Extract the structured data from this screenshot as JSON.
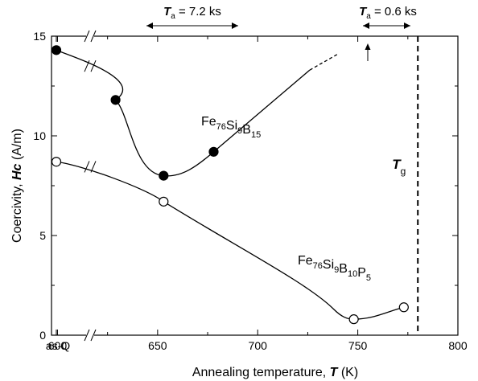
{
  "chart_data": {
    "type": "scatter",
    "xlabel": {
      "prefix": "Annealing temperature, ",
      "var": "T",
      "suffix": " (K)"
    },
    "ylabel": {
      "prefix": "Coercivity, ",
      "var": "Hc",
      "suffix": " (A/m)"
    },
    "xlim": [
      597,
      800
    ],
    "ylim": [
      0,
      15
    ],
    "x_ticks": [
      {
        "label": "as-Q",
        "x": "as-Q"
      },
      {
        "label": "600",
        "x": 600
      },
      {
        "label": "650",
        "x": 650
      },
      {
        "label": "700",
        "x": 700
      },
      {
        "label": "750",
        "x": 750
      },
      {
        "label": "800",
        "x": 800
      }
    ],
    "y_ticks": [
      0,
      5,
      10,
      15
    ],
    "axis_break": "between as-Q and 600",
    "grid": false,
    "series": [
      {
        "name": "Fe76Si9B15",
        "label_parts": [
          [
            "Fe",
            "76"
          ],
          [
            "Si",
            "9"
          ],
          [
            "B",
            "15"
          ]
        ],
        "marker": "filled-circle",
        "x": [
          "as-Q",
          629,
          653,
          678
        ],
        "y": [
          14.3,
          11.8,
          8.0,
          9.2
        ],
        "trend_extends_to": {
          "x": 740,
          "y": 14.1
        }
      },
      {
        "name": "Fe76Si9B10P5",
        "label_parts": [
          [
            "Fe",
            "76"
          ],
          [
            "Si",
            "9"
          ],
          [
            "B",
            "10"
          ],
          [
            "P",
            "5"
          ]
        ],
        "marker": "open-circle",
        "x": [
          "as-Q",
          653,
          748,
          773
        ],
        "y": [
          8.7,
          6.7,
          0.8,
          1.4
        ]
      }
    ],
    "annotations": [
      {
        "id": "ta1",
        "var": "T",
        "sub": "a",
        "text": " = 7.2 ks",
        "range": [
          629,
          678
        ]
      },
      {
        "id": "ta2",
        "var": "T",
        "sub": "a",
        "text": " = 0.6 ks",
        "range": [
          750,
          773
        ]
      },
      {
        "id": "tg",
        "var": "T",
        "sub": "g",
        "x": 780
      }
    ]
  }
}
